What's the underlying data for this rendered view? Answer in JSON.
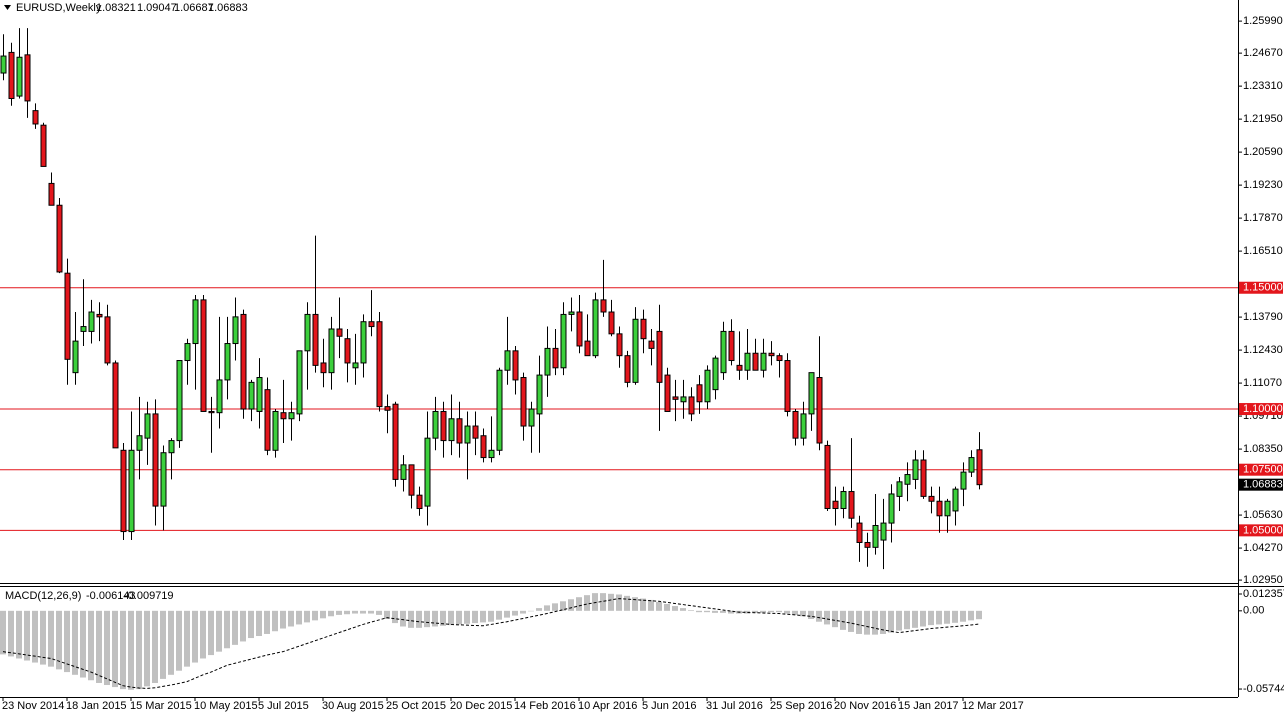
{
  "chart_data": {
    "type": "candlestick",
    "title": "EURUSD,Weekly",
    "categories": [
      "23 Nov 2014",
      null,
      null,
      null,
      null,
      null,
      null,
      null,
      "18 Jan 2015",
      null,
      null,
      null,
      null,
      null,
      null,
      null,
      "15 Mar 2015",
      null,
      null,
      null,
      null,
      null,
      null,
      null,
      "10 May 2015",
      null,
      null,
      null,
      null,
      null,
      null,
      null,
      "5 Jul 2015",
      null,
      null,
      null,
      null,
      null,
      null,
      null,
      "30 Aug 2015",
      null,
      null,
      null,
      null,
      null,
      null,
      null,
      "25 Oct 2015",
      null,
      null,
      null,
      null,
      null,
      null,
      null,
      "20 Dec 2015",
      null,
      null,
      null,
      null,
      null,
      null,
      null,
      "14 Feb 2016",
      null,
      null,
      null,
      null,
      null,
      null,
      null,
      "10 Apr 2016",
      null,
      null,
      null,
      null,
      null,
      null,
      null,
      "5 Jun 2016",
      null,
      null,
      null,
      null,
      null,
      null,
      null,
      "31 Jul 2016",
      null,
      null,
      null,
      null,
      null,
      null,
      null,
      "25 Sep 2016",
      null,
      null,
      null,
      null,
      null,
      null,
      null,
      "20 Nov 2016",
      null,
      null,
      null,
      null,
      null,
      null,
      null,
      "15 Jan 2017",
      null,
      null,
      null,
      null,
      null,
      null,
      null,
      "12 Mar 2017",
      null,
      null
    ],
    "open": [
      1.2385,
      1.247,
      1.229,
      1.246,
      1.223,
      1.217,
      1.193,
      1.184,
      1.156,
      1.115,
      1.132,
      1.132,
      1.139,
      1.138,
      1.119,
      1.083,
      1.0495,
      1.083,
      1.088,
      1.098,
      1.06,
      1.082,
      1.087,
      1.12,
      1.127,
      1.145,
      1.099,
      1.0985,
      1.112,
      1.127,
      1.139,
      1.1,
      1.099,
      1.108,
      1.083,
      1.0985,
      1.096,
      1.098,
      1.124,
      1.139,
      1.119,
      1.115,
      1.133,
      1.129,
      1.117,
      1.119,
      1.136,
      1.136,
      1.101,
      1.102,
      1.071,
      1.077,
      1.0645,
      1.06,
      1.088,
      1.099,
      1.087,
      1.096,
      1.086,
      1.093,
      1.089,
      1.08,
      1.083,
      1.116,
      1.124,
      1.113,
      1.093,
      1.098,
      1.114,
      1.125,
      1.117,
      1.139,
      1.14,
      1.128,
      1.122,
      1.145,
      1.14,
      1.131,
      1.122,
      1.111,
      1.137,
      1.128,
      1.132,
      1.114,
      1.105,
      1.103,
      1.105,
      1.11,
      1.103,
      1.108,
      1.115,
      1.132,
      1.118,
      1.116,
      1.123,
      1.116,
      1.123,
      1.122,
      1.12,
      1.099,
      1.088,
      1.098,
      1.113,
      1.085,
      1.062,
      1.059,
      1.066,
      1.053,
      1.045,
      1.043,
      1.046,
      1.053,
      1.064,
      1.069,
      1.071,
      1.079,
      1.064,
      1.062,
      1.056,
      1.058,
      1.067,
      1.074,
      1.08321
    ],
    "high": [
      1.2545,
      1.251,
      1.257,
      1.257,
      1.226,
      1.218,
      1.1975,
      1.187,
      1.162,
      1.14,
      1.1535,
      1.145,
      1.144,
      1.143,
      1.12,
      1.086,
      1.099,
      1.105,
      1.103,
      1.104,
      1.085,
      1.088,
      1.12,
      1.129,
      1.147,
      1.147,
      1.105,
      1.138,
      1.138,
      1.146,
      1.141,
      1.112,
      1.121,
      1.113,
      1.1,
      1.112,
      1.103,
      1.124,
      1.144,
      1.1715,
      1.129,
      1.138,
      1.146,
      1.133,
      1.131,
      1.139,
      1.149,
      1.14,
      1.106,
      1.103,
      1.081,
      1.077,
      1.068,
      1.099,
      1.105,
      1.103,
      1.106,
      1.103,
      1.099,
      1.099,
      1.092,
      1.097,
      1.117,
      1.138,
      1.126,
      1.115,
      1.103,
      1.122,
      1.134,
      1.133,
      1.144,
      1.146,
      1.147,
      1.139,
      1.148,
      1.1615,
      1.145,
      1.134,
      1.124,
      1.142,
      1.141,
      1.133,
      1.143,
      1.117,
      1.112,
      1.112,
      1.109,
      1.114,
      1.118,
      1.122,
      1.136,
      1.137,
      1.132,
      1.133,
      1.129,
      1.129,
      1.128,
      1.123,
      1.123,
      1.1,
      1.103,
      1.115,
      1.13,
      1.087,
      1.068,
      1.068,
      1.088,
      1.056,
      1.049,
      1.065,
      1.063,
      1.069,
      1.072,
      1.078,
      1.083,
      1.083,
      1.068,
      1.068,
      1.063,
      1.068,
      1.078,
      1.083,
      1.09047
    ],
    "low": [
      1.2355,
      1.225,
      1.228,
      1.22,
      1.2155,
      1.2,
      1.184,
      1.156,
      1.11,
      1.11,
      1.126,
      1.127,
      1.128,
      1.118,
      1.084,
      1.046,
      1.046,
      1.071,
      1.077,
      1.052,
      1.05,
      1.071,
      1.084,
      1.11,
      1.108,
      1.099,
      1.082,
      1.092,
      1.104,
      1.12,
      1.096,
      1.095,
      1.092,
      1.081,
      1.08,
      1.086,
      1.087,
      1.095,
      1.108,
      1.115,
      1.109,
      1.108,
      1.121,
      1.111,
      1.11,
      1.113,
      1.13,
      1.099,
      1.09,
      1.068,
      1.066,
      1.059,
      1.056,
      1.052,
      1.083,
      1.08,
      1.081,
      1.08,
      1.071,
      1.081,
      1.078,
      1.078,
      1.081,
      1.11,
      1.106,
      1.087,
      1.082,
      1.082,
      1.105,
      1.114,
      1.114,
      1.132,
      1.123,
      1.122,
      1.121,
      1.138,
      1.13,
      1.117,
      1.109,
      1.11,
      1.123,
      1.118,
      1.091,
      1.099,
      1.095,
      1.096,
      1.095,
      1.098,
      1.1,
      1.104,
      1.112,
      1.118,
      1.112,
      1.112,
      1.116,
      1.113,
      1.118,
      1.113,
      1.097,
      1.085,
      1.085,
      1.091,
      1.083,
      1.058,
      1.052,
      1.055,
      1.051,
      1.037,
      1.035,
      1.04,
      1.034,
      1.045,
      1.058,
      1.062,
      1.067,
      1.063,
      1.057,
      1.049,
      1.049,
      1.052,
      1.06,
      1.072,
      1.06687
    ],
    "close": [
      1.2455,
      1.228,
      1.245,
      1.227,
      1.2175,
      1.2,
      1.184,
      1.1565,
      1.1205,
      1.128,
      1.134,
      1.14,
      1.138,
      1.119,
      1.084,
      1.0495,
      1.083,
      1.089,
      1.098,
      1.06,
      1.082,
      1.087,
      1.12,
      1.127,
      1.145,
      1.099,
      1.0985,
      1.112,
      1.127,
      1.138,
      1.1,
      1.111,
      1.113,
      1.083,
      1.099,
      1.096,
      1.0985,
      1.124,
      1.139,
      1.118,
      1.115,
      1.133,
      1.13,
      1.119,
      1.119,
      1.136,
      1.134,
      1.101,
      1.0995,
      1.071,
      1.077,
      1.0645,
      1.059,
      1.088,
      1.099,
      1.087,
      1.096,
      1.086,
      1.093,
      1.088,
      1.08,
      1.083,
      1.116,
      1.124,
      1.112,
      1.093,
      1.1,
      1.114,
      1.125,
      1.117,
      1.139,
      1.14,
      1.126,
      1.122,
      1.145,
      1.14,
      1.131,
      1.122,
      1.111,
      1.137,
      1.129,
      1.125,
      1.111,
      1.099,
      1.104,
      1.105,
      1.098,
      1.103,
      1.116,
      1.121,
      1.132,
      1.12,
      1.116,
      1.123,
      1.116,
      1.123,
      1.122,
      1.12,
      1.099,
      1.088,
      1.098,
      1.115,
      1.086,
      1.059,
      1.059,
      1.066,
      1.055,
      1.045,
      1.043,
      1.052,
      1.053,
      1.065,
      1.07,
      1.073,
      1.079,
      1.064,
      1.062,
      1.056,
      1.062,
      1.067,
      1.074,
      1.08,
      1.06883
    ],
    "up_color": "#3ccf3c",
    "down_color": "#e3161c",
    "ylim": [
      1.0283,
      1.2686
    ],
    "yticks": [
      {
        "value": 1.2599,
        "label": "1.25990"
      },
      {
        "value": 1.2467,
        "label": "1.24670"
      },
      {
        "value": 1.2331,
        "label": "1.23310"
      },
      {
        "value": 1.2195,
        "label": "1.21950"
      },
      {
        "value": 1.2059,
        "label": "1.20590"
      },
      {
        "value": 1.1923,
        "label": "1.19230"
      },
      {
        "value": 1.1787,
        "label": "1.17870"
      },
      {
        "value": 1.1651,
        "label": "1.16510"
      },
      {
        "value": 1.1379,
        "label": "1.13790"
      },
      {
        "value": 1.1243,
        "label": "1.12430"
      },
      {
        "value": 1.1107,
        "label": "1.11070"
      },
      {
        "value": 1.0971,
        "label": "1.09710"
      },
      {
        "value": 1.0835,
        "label": "1.08350"
      },
      {
        "value": 1.0563,
        "label": "1.05630"
      },
      {
        "value": 1.0427,
        "label": "1.04270"
      },
      {
        "value": 1.0295,
        "label": "1.02950"
      }
    ],
    "hlines": [
      {
        "value": 1.15,
        "label": "1.15000"
      },
      {
        "value": 1.1,
        "label": "1.10000"
      },
      {
        "value": 1.075,
        "label": "1.07500"
      },
      {
        "value": 1.05,
        "label": "1.05000"
      }
    ],
    "hline_color": "#e3161c",
    "macd": {
      "label": "MACD(12,26,9)",
      "histogram": [
        -0.032,
        -0.0335,
        -0.035,
        -0.0365,
        -0.038,
        -0.0395,
        -0.041,
        -0.043,
        -0.045,
        -0.047,
        -0.049,
        -0.051,
        -0.053,
        -0.0545,
        -0.056,
        -0.0575,
        -0.058,
        -0.0575,
        -0.0555,
        -0.053,
        -0.05,
        -0.047,
        -0.044,
        -0.041,
        -0.038,
        -0.035,
        -0.0325,
        -0.03,
        -0.0275,
        -0.025,
        -0.0225,
        -0.02,
        -0.0185,
        -0.017,
        -0.015,
        -0.013,
        -0.0115,
        -0.01,
        -0.0085,
        -0.007,
        -0.0055,
        -0.004,
        -0.003,
        -0.0025,
        -0.002,
        -0.002,
        -0.002,
        -0.003,
        -0.006,
        -0.009,
        -0.0115,
        -0.0125,
        -0.0125,
        -0.012,
        -0.0115,
        -0.011,
        -0.0105,
        -0.01,
        -0.0095,
        -0.009,
        -0.0085,
        -0.008,
        -0.0065,
        -0.005,
        -0.0035,
        -0.002,
        0.0,
        0.002,
        0.004,
        0.0055,
        0.007,
        0.0085,
        0.01,
        0.0115,
        0.013,
        0.013,
        0.0125,
        0.012,
        0.011,
        0.01,
        0.009,
        0.008,
        0.0065,
        0.005,
        0.0035,
        0.002,
        0.0005,
        -0.001,
        -0.001,
        -0.0015,
        -0.0015,
        -0.002,
        -0.002,
        -0.002,
        -0.0015,
        -0.0015,
        -0.001,
        -0.001,
        -0.002,
        -0.003,
        -0.004,
        -0.006,
        -0.008,
        -0.01,
        -0.012,
        -0.014,
        -0.0155,
        -0.017,
        -0.0175,
        -0.0175,
        -0.017,
        -0.016,
        -0.0145,
        -0.0135,
        -0.0125,
        -0.0115,
        -0.0105,
        -0.01,
        -0.0095,
        -0.0088,
        -0.008,
        -0.007,
        -0.006143
      ],
      "signal": [
        -0.03,
        -0.0308,
        -0.0316,
        -0.0325,
        -0.0333,
        -0.0342,
        -0.035,
        -0.037,
        -0.039,
        -0.041,
        -0.043,
        -0.045,
        -0.0475,
        -0.05,
        -0.0525,
        -0.055,
        -0.056,
        -0.0567,
        -0.057,
        -0.0565,
        -0.0555,
        -0.0545,
        -0.0533,
        -0.052,
        -0.0495,
        -0.047,
        -0.045,
        -0.0425,
        -0.04,
        -0.0385,
        -0.037,
        -0.0355,
        -0.034,
        -0.0325,
        -0.0312,
        -0.03,
        -0.028,
        -0.026,
        -0.024,
        -0.022,
        -0.02,
        -0.018,
        -0.016,
        -0.014,
        -0.012,
        -0.01,
        -0.0083,
        -0.0067,
        -0.005,
        -0.0058,
        -0.0065,
        -0.0073,
        -0.008,
        -0.0085,
        -0.009,
        -0.0095,
        -0.01,
        -0.0103,
        -0.0105,
        -0.0108,
        -0.011,
        -0.01,
        -0.009,
        -0.008,
        -0.0068,
        -0.0056,
        -0.0044,
        -0.0032,
        -0.002,
        -0.0006,
        0.0008,
        0.0022,
        0.0036,
        0.005,
        0.006,
        0.007,
        0.008,
        0.009,
        0.0086,
        0.0082,
        0.0078,
        0.0074,
        0.007,
        0.0062,
        0.0054,
        0.0046,
        0.0038,
        0.003,
        0.0022,
        0.0014,
        0.0006,
        -0.0002,
        -0.001,
        -0.0012,
        -0.0014,
        -0.0016,
        -0.0018,
        -0.002,
        -0.0025,
        -0.003,
        -0.0035,
        -0.004,
        -0.005,
        -0.006,
        -0.007,
        -0.008,
        -0.009,
        -0.0103,
        -0.0115,
        -0.0128,
        -0.014,
        -0.015,
        -0.016,
        -0.0153,
        -0.0145,
        -0.0138,
        -0.013,
        -0.0125,
        -0.012,
        -0.0115,
        -0.011,
        -0.0104,
        -0.009719
      ],
      "histogram_color": "#c0c0c0",
      "signal_color": "#000000",
      "ylim": [
        -0.0633,
        0.0175
      ],
      "yticks": [
        0.012357,
        {
          "value": 0,
          "label": "0.00"
        },
        -0.057447
      ]
    }
  }
}
